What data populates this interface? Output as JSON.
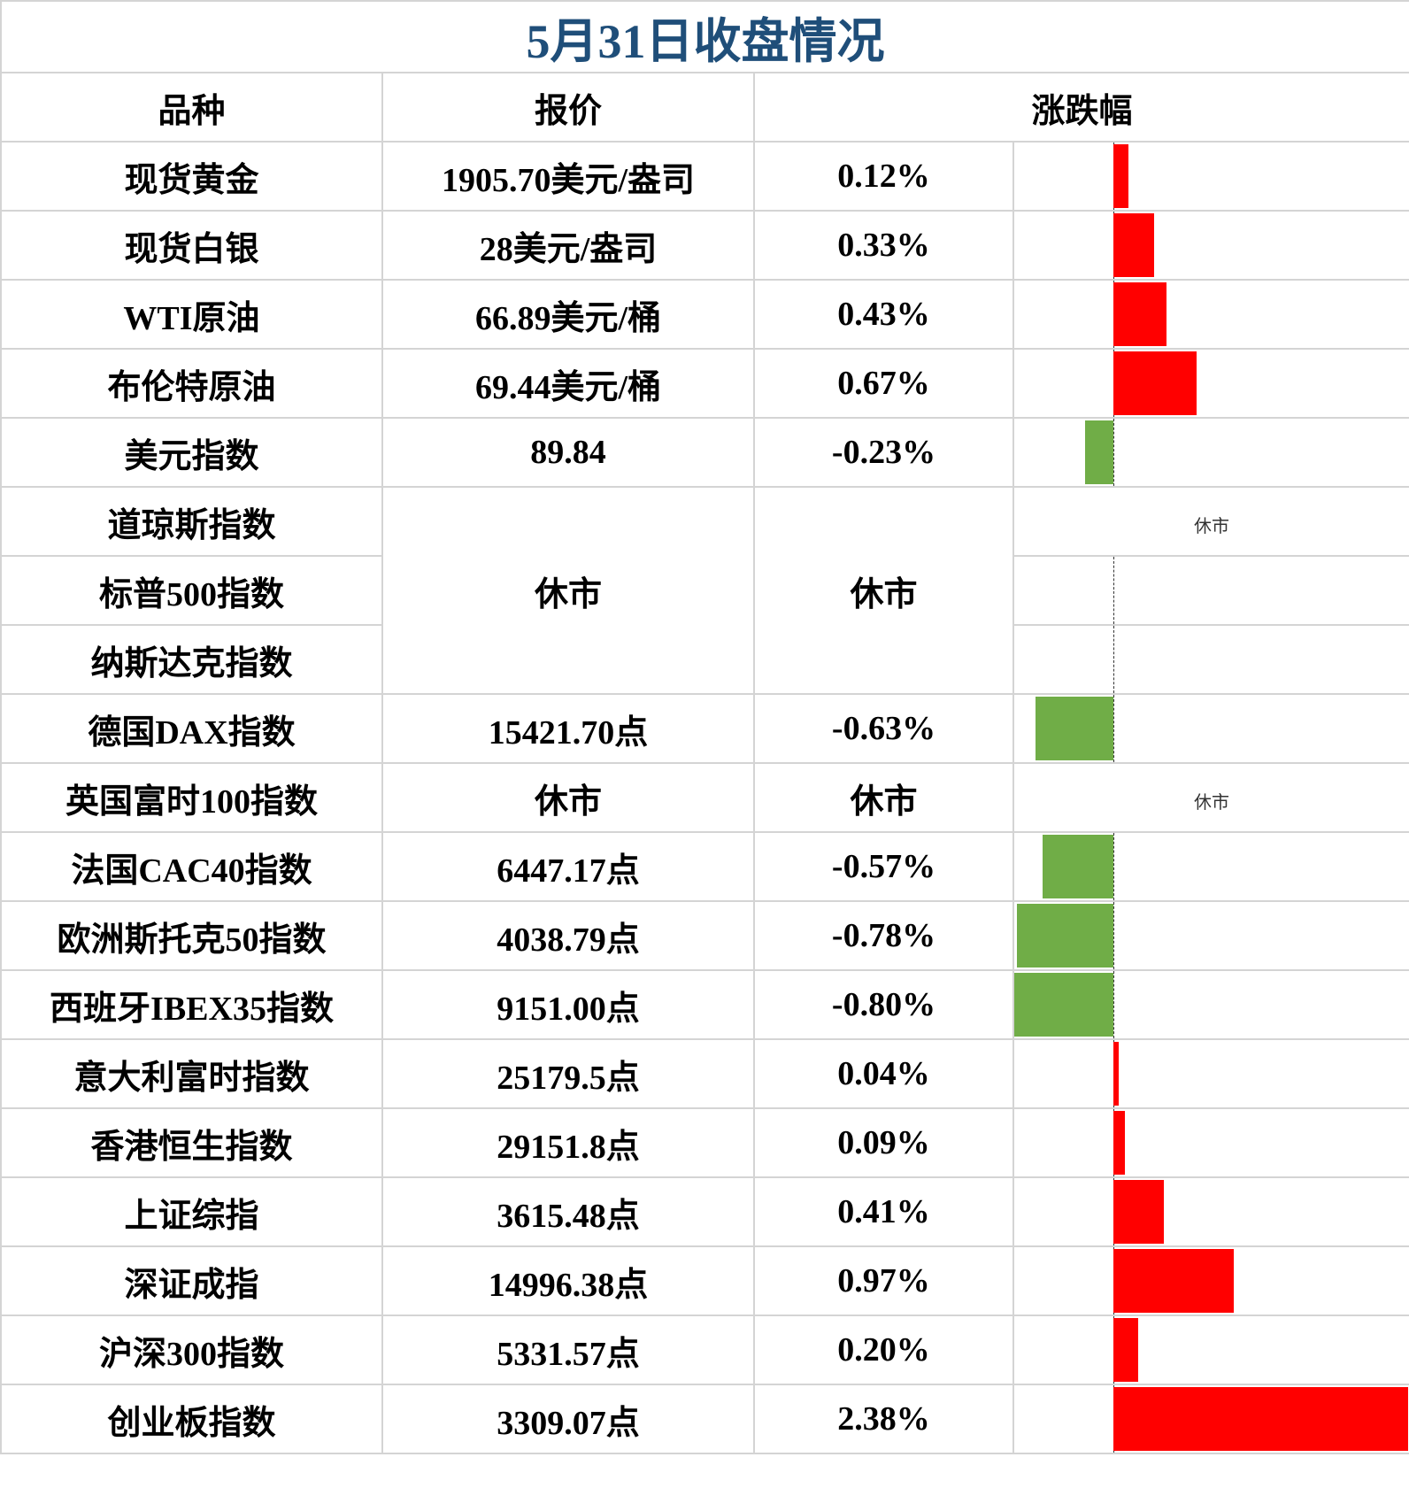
{
  "title": "5月31日收盘情况",
  "headers": {
    "name": "品种",
    "price": "报价",
    "change": "涨跌幅"
  },
  "colors": {
    "title": "#1f4e79",
    "up": "#ff0000",
    "down": "#70ad47"
  },
  "chart_data": {
    "type": "bar",
    "orientation": "horizontal",
    "xlim": [
      -0.8,
      2.4
    ],
    "unit": "%",
    "categories": [
      "现货黄金",
      "现货白银",
      "WTI原油",
      "布伦特原油",
      "美元指数",
      "道琼斯指数",
      "标普500指数",
      "纳斯达克指数",
      "德国DAX指数",
      "英国富时100指数",
      "法国CAC40指数",
      "欧洲斯托克50指数",
      "西班牙IBEX35指数",
      "意大利富时指数",
      "香港恒生指数",
      "上证综指",
      "深证成指",
      "沪深300指数",
      "创业板指数"
    ],
    "values": [
      0.12,
      0.33,
      0.43,
      0.67,
      -0.23,
      null,
      null,
      null,
      -0.63,
      null,
      -0.57,
      -0.78,
      -0.8,
      0.04,
      0.09,
      0.41,
      0.97,
      0.2,
      2.38
    ]
  },
  "rows": [
    {
      "name": "现货黄金",
      "price": "1905.70美元/盎司",
      "change": "0.12%"
    },
    {
      "name": "现货白银",
      "price": "28美元/盎司",
      "change": "0.33%"
    },
    {
      "name": "WTI原油",
      "price": "66.89美元/桶",
      "change": "0.43%"
    },
    {
      "name": "布伦特原油",
      "price": "69.44美元/桶",
      "change": "0.67%"
    },
    {
      "name": "美元指数",
      "price": "89.84",
      "change": "-0.23%"
    },
    {
      "name": "道琼斯指数",
      "price": "休市",
      "change": "休市",
      "bar_note": "休市"
    },
    {
      "name": "标普500指数"
    },
    {
      "name": "纳斯达克指数"
    },
    {
      "name": "德国DAX指数",
      "price": "15421.70点",
      "change": "-0.63%"
    },
    {
      "name": "英国富时100指数",
      "price": "休市",
      "change": "休市",
      "bar_note": "休市"
    },
    {
      "name": "法国CAC40指数",
      "price": "6447.17点",
      "change": "-0.57%"
    },
    {
      "name": "欧洲斯托克50指数",
      "price": "4038.79点",
      "change": "-0.78%"
    },
    {
      "name": "西班牙IBEX35指数",
      "price": "9151.00点",
      "change": "-0.80%"
    },
    {
      "name": "意大利富时指数",
      "price": "25179.5点",
      "change": "0.04%"
    },
    {
      "name": "香港恒生指数",
      "price": "29151.8点",
      "change": "0.09%"
    },
    {
      "name": "上证综指",
      "price": "3615.48点",
      "change": "0.41%"
    },
    {
      "name": "深证成指",
      "price": "14996.38点",
      "change": "0.97%"
    },
    {
      "name": "沪深300指数",
      "price": "5331.57点",
      "change": "0.20%"
    },
    {
      "name": "创业板指数",
      "price": "3309.07点",
      "change": "2.38%"
    }
  ]
}
